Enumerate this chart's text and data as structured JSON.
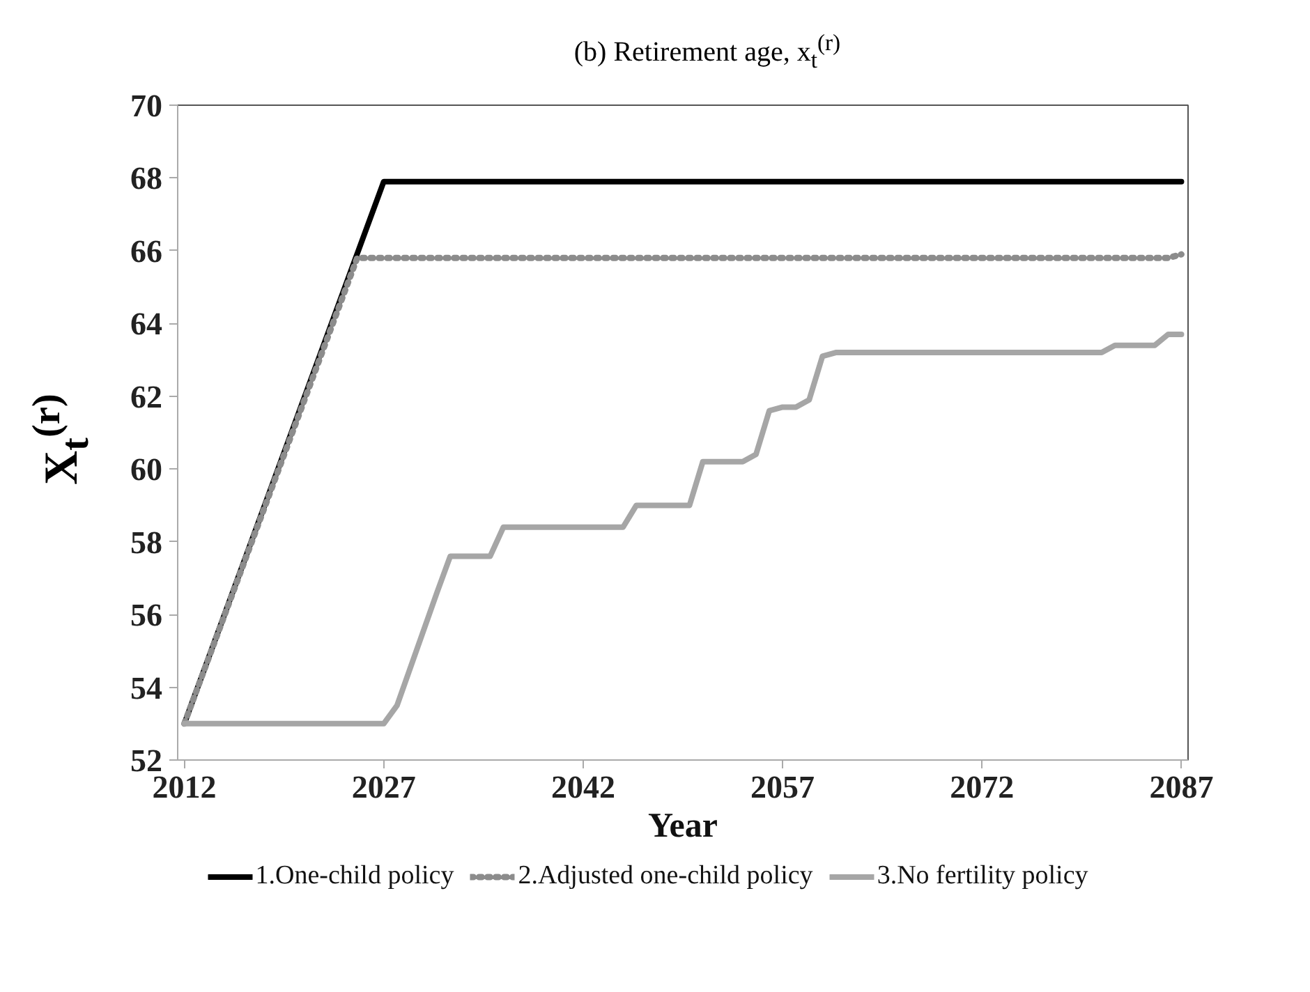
{
  "chart_data": {
    "type": "line",
    "title": "(b) Retirement age, x$_{t}$$^{(r)}$",
    "xlabel": "Year",
    "ylabel": "X$_{t}$$^{(r)}$",
    "xlim": [
      2011.5,
      2087.5
    ],
    "xticks": [
      2012,
      2027,
      2042,
      2057,
      2072,
      2087
    ],
    "ylim": [
      52,
      70
    ],
    "yticks": [
      52,
      54,
      56,
      58,
      60,
      62,
      64,
      66,
      68,
      70
    ],
    "grid": false,
    "legend": "bottom",
    "marker": "none",
    "series": [
      {
        "name": "1.One-child policy",
        "color": "#000000",
        "line_style": "solid",
        "x": [
          2012,
          2027,
          2087
        ],
        "values": [
          53,
          67.9,
          67.9
        ]
      },
      {
        "name": "2.Adjusted one-child policy",
        "color": "#8c8c8c",
        "line_style": "dotted",
        "x": [
          2012,
          2025,
          2086,
          2087
        ],
        "values": [
          53,
          65.8,
          65.8,
          65.9
        ]
      },
      {
        "name": "3.No fertility policy",
        "color": "#a6a6a6",
        "line_style": "solid",
        "x": [
          2012,
          2027,
          2028,
          2031,
          2032,
          2035,
          2036,
          2045,
          2046,
          2050,
          2051,
          2054,
          2055,
          2056,
          2057,
          2058,
          2059,
          2060,
          2061,
          2081,
          2082,
          2083,
          2085,
          2086,
          2087
        ],
        "values": [
          53,
          53,
          53.5,
          56.6,
          57.6,
          57.6,
          58.4,
          58.4,
          59.0,
          59.0,
          60.2,
          60.2,
          60.4,
          61.6,
          61.7,
          61.7,
          61.9,
          63.1,
          63.2,
          63.2,
          63.4,
          63.4,
          63.4,
          63.7,
          63.7
        ]
      }
    ]
  }
}
